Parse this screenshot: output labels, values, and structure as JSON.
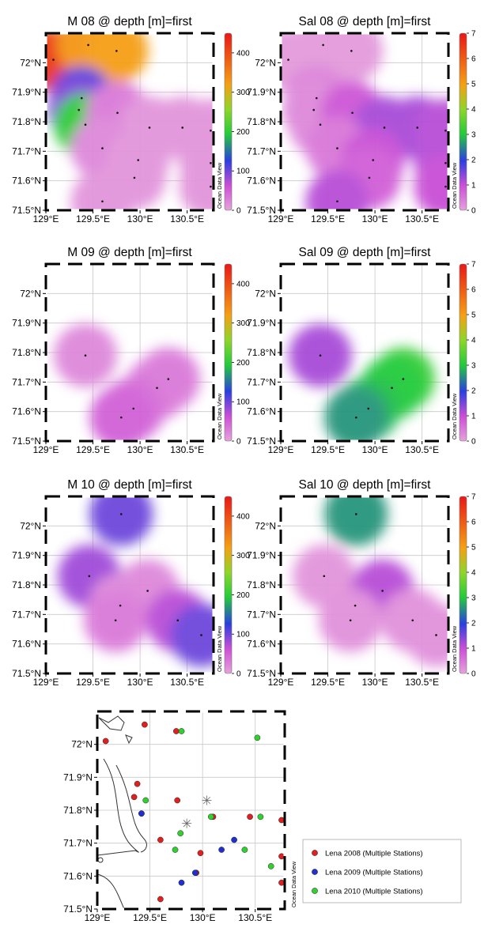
{
  "axes": {
    "x_ticks": [
      "129°E",
      "129.5°E",
      "130°E",
      "130.5°E"
    ],
    "x_tick_values": [
      129.0,
      129.5,
      130.0,
      130.5
    ],
    "y_ticks": [
      "71.5°N",
      "71.6°N",
      "71.7°N",
      "71.8°N",
      "71.9°N",
      "72°N"
    ],
    "y_tick_values": [
      71.5,
      71.6,
      71.7,
      71.8,
      71.9,
      72.0
    ],
    "lon_range": [
      129.0,
      130.78
    ],
    "lat_range": [
      71.5,
      72.1
    ]
  },
  "watermark": "Ocean Data View",
  "colorbars": {
    "M": {
      "ticks": [
        "0",
        "100",
        "200",
        "300",
        "400"
      ],
      "tick_values": [
        0,
        100,
        200,
        300,
        400
      ],
      "range": [
        0,
        450
      ]
    },
    "Sal": {
      "ticks": [
        "0",
        "1",
        "2",
        "3",
        "4",
        "5",
        "6",
        "7"
      ],
      "tick_values": [
        0,
        1,
        2,
        3,
        4,
        5,
        6,
        7
      ],
      "range": [
        0,
        7
      ]
    }
  },
  "colors": {
    "low": "#e6a2dc",
    "blue": "#2a3fe0",
    "green": "#22cc3a",
    "orange": "#f5a013",
    "red": "#e81818"
  },
  "panels": [
    {
      "title": "M 08 @ depth [m]=first",
      "variable": "M",
      "year": "2008",
      "stations": [
        [
          129.08,
          72.01,
          420
        ],
        [
          129.45,
          72.06,
          330
        ],
        [
          129.75,
          72.04,
          320
        ],
        [
          129.38,
          71.88,
          120
        ],
        [
          129.35,
          71.84,
          90
        ],
        [
          129.42,
          71.79,
          200
        ],
        [
          129.76,
          71.83,
          30
        ],
        [
          130.1,
          71.78,
          10
        ],
        [
          130.45,
          71.78,
          10
        ],
        [
          130.75,
          71.77,
          10
        ],
        [
          129.6,
          71.71,
          20
        ],
        [
          129.98,
          71.67,
          10
        ],
        [
          130.75,
          71.66,
          10
        ],
        [
          129.94,
          71.61,
          10
        ],
        [
          130.75,
          71.58,
          10
        ],
        [
          129.6,
          71.53,
          10
        ]
      ]
    },
    {
      "title": "Sal 08 @ depth [m]=first",
      "variable": "Sal",
      "year": "2008",
      "stations": [
        [
          129.08,
          72.01,
          0.1
        ],
        [
          129.45,
          72.06,
          0.1
        ],
        [
          129.75,
          72.04,
          0.1
        ],
        [
          129.38,
          71.88,
          0.4
        ],
        [
          129.35,
          71.84,
          0.3
        ],
        [
          129.42,
          71.79,
          0.3
        ],
        [
          129.76,
          71.83,
          0.9
        ],
        [
          130.1,
          71.78,
          1.2
        ],
        [
          130.45,
          71.78,
          1.2
        ],
        [
          130.75,
          71.77,
          1.1
        ],
        [
          129.6,
          71.71,
          0.5
        ],
        [
          129.98,
          71.67,
          1.0
        ],
        [
          130.75,
          71.66,
          1.1
        ],
        [
          129.94,
          71.61,
          0.8
        ],
        [
          130.75,
          71.58,
          1.0
        ],
        [
          129.6,
          71.53,
          1.1
        ]
      ]
    },
    {
      "title": "M 09 @ depth [m]=first",
      "variable": "M",
      "year": "2009",
      "stations": [
        [
          129.42,
          71.79,
          20
        ],
        [
          130.3,
          71.71,
          30
        ],
        [
          130.18,
          71.68,
          30
        ],
        [
          129.93,
          71.61,
          40
        ],
        [
          129.8,
          71.58,
          50
        ]
      ]
    },
    {
      "title": "Sal 09 @ depth [m]=first",
      "variable": "Sal",
      "year": "2009",
      "stations": [
        [
          129.42,
          71.79,
          1.2
        ],
        [
          130.3,
          71.71,
          3.2
        ],
        [
          130.18,
          71.68,
          3.0
        ],
        [
          129.93,
          71.61,
          2.9
        ],
        [
          129.8,
          71.58,
          2.6
        ]
      ]
    },
    {
      "title": "M 10 @ depth [m]=first",
      "variable": "M",
      "year": "2010",
      "stations": [
        [
          129.8,
          72.04,
          100
        ],
        [
          129.46,
          71.83,
          80
        ],
        [
          129.79,
          71.73,
          15
        ],
        [
          130.08,
          71.78,
          20
        ],
        [
          129.74,
          71.68,
          30
        ],
        [
          130.4,
          71.68,
          70
        ],
        [
          130.65,
          71.63,
          100
        ]
      ]
    },
    {
      "title": "Sal 10 @ depth [m]=first",
      "variable": "Sal",
      "year": "2010",
      "stations": [
        [
          129.8,
          72.04,
          2.6
        ],
        [
          129.46,
          71.83,
          0.15
        ],
        [
          129.79,
          71.73,
          0.15
        ],
        [
          130.08,
          71.78,
          1.1
        ],
        [
          129.74,
          71.68,
          0.2
        ],
        [
          130.4,
          71.68,
          0.2
        ],
        [
          130.65,
          71.63,
          0.2
        ]
      ]
    }
  ],
  "station_map": {
    "legend": [
      {
        "label": "Lena 2008 (Multiple Stations)",
        "color": "#e02020"
      },
      {
        "label": "Lena 2009 (Multiple Stations)",
        "color": "#2030d0"
      },
      {
        "label": "Lena 2010 (Multiple Stations)",
        "color": "#30d030"
      }
    ],
    "stations_2008": [
      [
        129.08,
        72.01
      ],
      [
        129.45,
        72.06
      ],
      [
        129.75,
        72.04
      ],
      [
        129.38,
        71.88
      ],
      [
        129.35,
        71.84
      ],
      [
        129.42,
        71.79
      ],
      [
        129.76,
        71.83
      ],
      [
        130.1,
        71.78
      ],
      [
        130.45,
        71.78
      ],
      [
        130.75,
        71.77
      ],
      [
        129.6,
        71.71
      ],
      [
        129.98,
        71.67
      ],
      [
        130.75,
        71.66
      ],
      [
        129.94,
        71.61
      ],
      [
        130.75,
        71.58
      ],
      [
        129.6,
        71.53
      ]
    ],
    "stations_2009": [
      [
        129.42,
        71.79
      ],
      [
        130.3,
        71.71
      ],
      [
        130.18,
        71.68
      ],
      [
        129.93,
        71.61
      ],
      [
        129.8,
        71.58
      ]
    ],
    "stations_2010": [
      [
        129.8,
        72.04
      ],
      [
        130.52,
        72.02
      ],
      [
        129.46,
        71.83
      ],
      [
        129.79,
        71.73
      ],
      [
        130.08,
        71.78
      ],
      [
        129.74,
        71.68
      ],
      [
        130.4,
        71.68
      ],
      [
        130.65,
        71.63
      ],
      [
        130.55,
        71.78
      ]
    ]
  }
}
